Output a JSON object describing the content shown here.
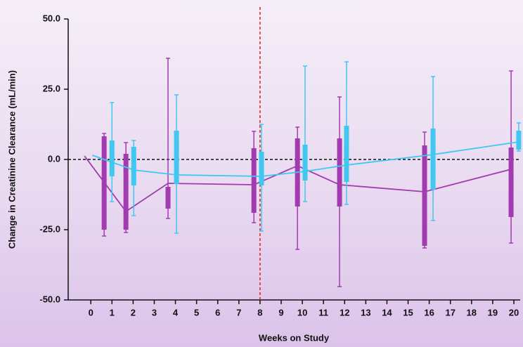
{
  "chart_data": {
    "type": "box",
    "y_label": "Change in Creatinine Clearance (mL/min)",
    "x_label": "Weeks on Study",
    "xlim": [
      -1.07,
      20.3
    ],
    "xticks": [
      0,
      1,
      2,
      3,
      4,
      5,
      6,
      7,
      8,
      9,
      10,
      11,
      12,
      13,
      14,
      15,
      16,
      17,
      18,
      19,
      20
    ],
    "ylim": [
      -50,
      50
    ],
    "yticks": [
      {
        "value": -50,
        "label": "-50.0"
      },
      {
        "value": -25,
        "label": "-25.0"
      },
      {
        "value": 0,
        "label": "0.0"
      },
      {
        "value": 25,
        "label": "25.0"
      },
      {
        "value": 50,
        "label": "50.0"
      }
    ],
    "hline": 0,
    "hline_color": "#111111",
    "vline": 8,
    "vline_color": "#e0201b",
    "series": [
      {
        "color": "#a23bb0",
        "x": [
          -0.3,
          0.63,
          1.66,
          3.65,
          7.71,
          9.77,
          11.76,
          15.78,
          19.87
        ],
        "values": [
          1.25,
          null,
          -18.5,
          -8.5,
          -9,
          -2.25,
          -9,
          -11.5,
          -3.5
        ],
        "whislo": [
          null,
          -27.25,
          -26,
          -21,
          -22.5,
          -32,
          -45.25,
          -31.5,
          -29.75
        ],
        "q1": [
          null,
          -25,
          -25,
          -17.5,
          -19,
          -16.75,
          -16.75,
          -30.75,
          -20.5
        ],
        "q3": [
          null,
          8.25,
          2,
          -9.75,
          4,
          7.5,
          7.5,
          5,
          4.25
        ],
        "whishi": [
          null,
          9.25,
          6,
          36,
          10,
          11.5,
          22.25,
          9.75,
          31.5
        ]
      },
      {
        "color": "#41c8f0",
        "x": [
          0.07,
          1.0,
          2.03,
          4.05,
          8.07,
          10.13,
          12.09,
          16.18,
          20.23
        ],
        "values": [
          1.5,
          null,
          -3.75,
          -5.5,
          -6,
          -4.25,
          -2,
          1.75,
          6.25
        ],
        "whislo": [
          null,
          -15,
          -20,
          -26.25,
          -25.5,
          -15,
          -16,
          -21.75,
          3
        ],
        "q1": [
          null,
          -6,
          -9.25,
          -8.75,
          -9.25,
          -7.5,
          -8,
          -10.75,
          3.5
        ],
        "q3": [
          null,
          6.75,
          4.5,
          10.25,
          2.75,
          5.25,
          12,
          11,
          10.25
        ],
        "whishi": [
          null,
          20.25,
          6.75,
          23,
          12.5,
          33.25,
          34.75,
          29.5,
          13
        ]
      }
    ]
  }
}
